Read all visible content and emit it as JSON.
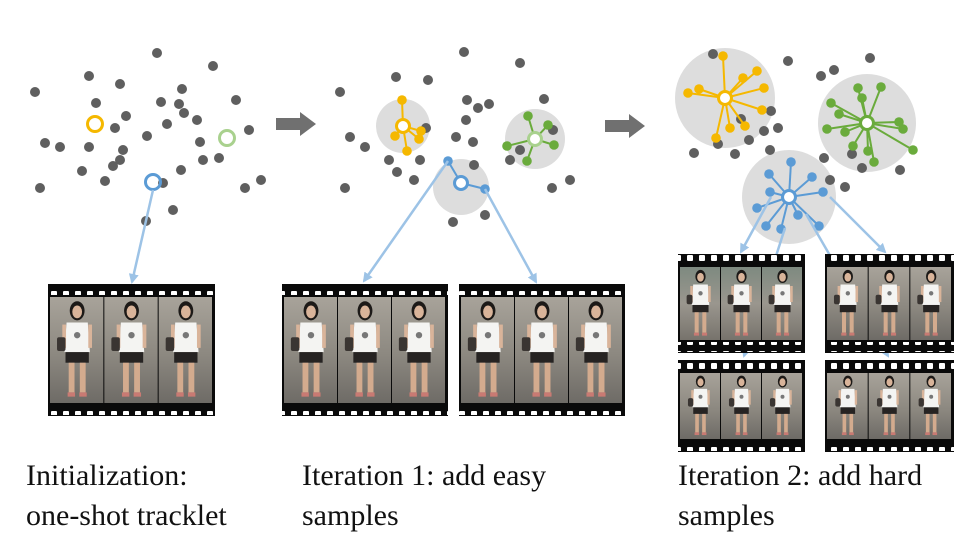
{
  "captions": [
    {
      "line1": "Initialization:",
      "line2": "one-shot tracklet"
    },
    {
      "line1": "Iteration 1: add easy",
      "line2": "samples"
    },
    {
      "line1": "Iteration 2: add hard",
      "line2": "samples"
    }
  ],
  "colors": {
    "background_point": "#5f5f5f",
    "yellow": "#f5b800",
    "green": "#6aab3c",
    "blue": "#5b9bd5",
    "cluster_bg": "#dddddd",
    "arrow": "#707070",
    "link_arrow": "#9dc3e6",
    "film": "#0a0a0a"
  },
  "stages": [
    {
      "name": "initialization",
      "tracklets": 1
    },
    {
      "name": "iteration-1",
      "tracklets": 2
    },
    {
      "name": "iteration-2",
      "tracklets": 4
    }
  ]
}
